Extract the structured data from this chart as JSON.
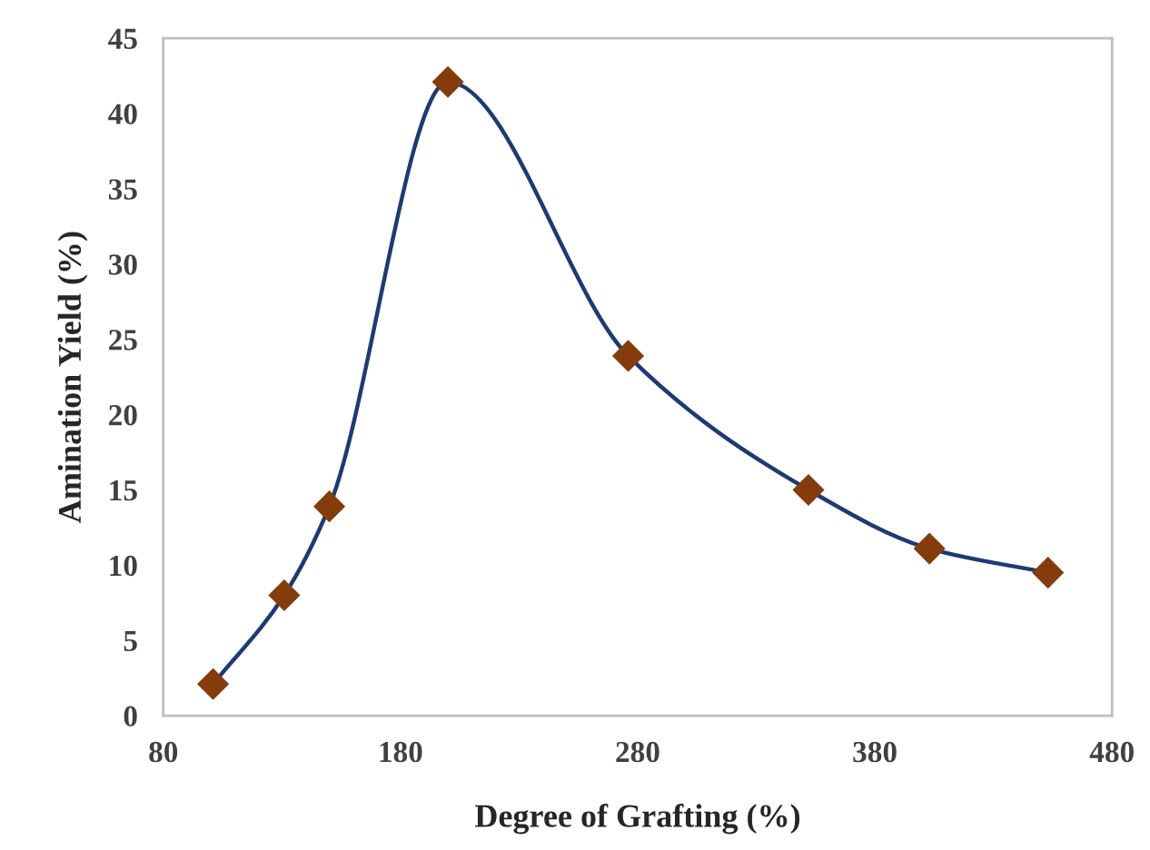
{
  "chart_data": {
    "type": "line",
    "xlabel": "Degree of Grafting (%)",
    "ylabel": "Amination Yield (%)",
    "x": [
      101,
      131,
      150,
      200,
      276,
      352,
      403,
      453
    ],
    "series": [
      {
        "color": "#1f3a73",
        "marker": "none",
        "values": [
          2.1,
          8.0,
          13.9,
          42.1,
          23.9,
          15.0,
          11.1,
          9.5
        ]
      },
      {
        "type": "scatter",
        "color": "#843c0c",
        "values": [
          2.1,
          8.0,
          13.9,
          42.1,
          23.9,
          15.0,
          11.1,
          9.5
        ]
      }
    ],
    "marker": "diamond",
    "line_style": "solid",
    "xlim": [
      80,
      480
    ],
    "xticks": [
      80,
      180,
      280,
      380,
      480
    ],
    "ylim": [
      0,
      45
    ],
    "yticks": [
      0,
      5,
      10,
      15,
      20,
      25,
      30,
      35,
      40,
      45
    ],
    "grid": false,
    "legend": false
  }
}
